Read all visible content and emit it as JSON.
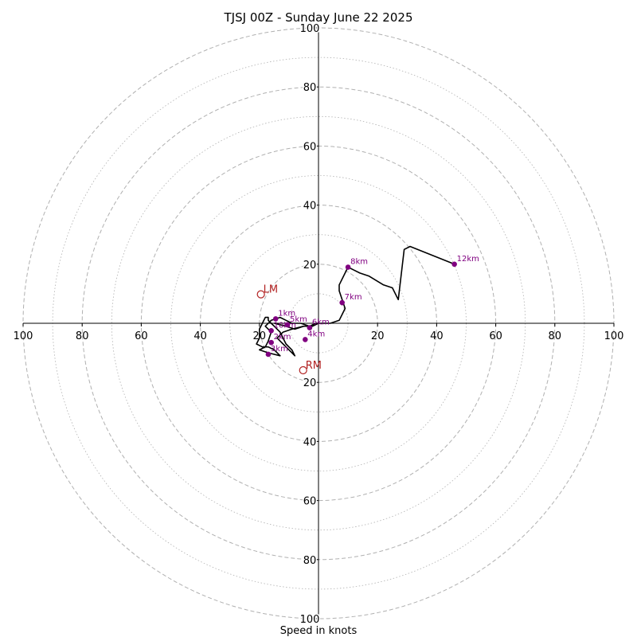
{
  "chart_data": {
    "type": "hodograph",
    "title": "TJSJ 00Z - Sunday June 22 2025",
    "xlabel": "Speed in knots",
    "ylabel": "",
    "xlim": [
      -100,
      100
    ],
    "ylim": [
      -100,
      100
    ],
    "rings_major": [
      20,
      40,
      60,
      80,
      100
    ],
    "rings_minor": [
      10,
      30,
      50,
      70,
      90
    ],
    "x_ticks": [
      {
        "value": -100,
        "label": "100"
      },
      {
        "value": -80,
        "label": "80"
      },
      {
        "value": -60,
        "label": "60"
      },
      {
        "value": -40,
        "label": "40"
      },
      {
        "value": -20,
        "label": "20"
      },
      {
        "value": 20,
        "label": "20"
      },
      {
        "value": 40,
        "label": "40"
      },
      {
        "value": 60,
        "label": "60"
      },
      {
        "value": 80,
        "label": "80"
      },
      {
        "value": 100,
        "label": "100"
      }
    ],
    "y_ticks": [
      {
        "value": 100,
        "label": "100"
      },
      {
        "value": 80,
        "label": "80"
      },
      {
        "value": 60,
        "label": "60"
      },
      {
        "value": 40,
        "label": "40"
      },
      {
        "value": 20,
        "label": "20"
      },
      {
        "value": -20,
        "label": "20"
      },
      {
        "value": -40,
        "label": "40"
      },
      {
        "value": -60,
        "label": "60"
      },
      {
        "value": -80,
        "label": "80"
      },
      {
        "value": -100,
        "label": "100"
      }
    ],
    "trace": {
      "color": "#000000",
      "points": [
        [
          -15,
          0
        ],
        [
          -11,
          -1
        ],
        [
          -8,
          -2
        ],
        [
          -5,
          -1
        ],
        [
          -3,
          -1
        ],
        [
          -1,
          0
        ],
        [
          0,
          0
        ],
        [
          -2,
          -1
        ],
        [
          -5,
          -1
        ],
        [
          -9,
          -2
        ],
        [
          -12,
          -3
        ],
        [
          -13,
          -4
        ],
        [
          -14,
          -5
        ],
        [
          -13,
          -6
        ],
        [
          -12,
          -7
        ],
        [
          -11,
          -8
        ],
        [
          -10,
          -9
        ],
        [
          -9,
          -10
        ],
        [
          -8,
          -11
        ],
        [
          -9,
          -9
        ],
        [
          -11,
          -7
        ],
        [
          -12,
          -5
        ],
        [
          -13,
          -3
        ],
        [
          -14,
          -2
        ],
        [
          -15,
          -1
        ],
        [
          -16,
          0
        ],
        [
          -17,
          1
        ],
        [
          -17,
          2
        ],
        [
          -18,
          2
        ],
        [
          -19,
          0
        ],
        [
          -20,
          -2
        ],
        [
          -20,
          -5
        ],
        [
          -21,
          -7
        ],
        [
          -19,
          -8
        ],
        [
          -17,
          -8
        ],
        [
          -15,
          -9
        ],
        [
          -14,
          -10
        ],
        [
          -13,
          -11
        ],
        [
          -17,
          -10
        ],
        [
          -20,
          -9
        ],
        [
          -18,
          -8
        ],
        [
          -17,
          -6
        ],
        [
          -16,
          -3
        ],
        [
          -18,
          -1
        ],
        [
          -16,
          1
        ],
        [
          -13,
          2
        ],
        [
          -11,
          1
        ],
        [
          -9,
          0
        ],
        [
          -6,
          0
        ],
        [
          -3,
          -1
        ],
        [
          0,
          0
        ],
        [
          4,
          0
        ],
        [
          7,
          1
        ],
        [
          8,
          3
        ],
        [
          9,
          5
        ],
        [
          8,
          8
        ],
        [
          7,
          11
        ],
        [
          7,
          13
        ],
        [
          9,
          17
        ],
        [
          10,
          19
        ],
        [
          12,
          18
        ],
        [
          14,
          17
        ],
        [
          17,
          16
        ],
        [
          22,
          13
        ],
        [
          25,
          12
        ],
        [
          27,
          8
        ],
        [
          29,
          25
        ],
        [
          31,
          26
        ],
        [
          46,
          20
        ]
      ]
    },
    "km_points": [
      {
        "label": "1km",
        "x": -14.5,
        "y": 1.5
      },
      {
        "label": "2km",
        "x": -16,
        "y": -6.5
      },
      {
        "label": "3km",
        "x": -17,
        "y": -10.5
      },
      {
        "label": "4km",
        "x": -4.5,
        "y": -5.5
      },
      {
        "label": "5km",
        "x": -10.5,
        "y": -0.5
      },
      {
        "label": "6km",
        "x": -3,
        "y": -1.5
      },
      {
        "label": "7km",
        "x": 8,
        "y": 7
      },
      {
        "label": "8km",
        "x": 10,
        "y": 19
      },
      {
        "label": "10km",
        "x": -16,
        "y": -2.5
      },
      {
        "label": "12km",
        "x": 46,
        "y": 20
      }
    ],
    "storm_motion": [
      {
        "label": "LM",
        "x": -19.5,
        "y": 9.8,
        "color": "#b22222"
      },
      {
        "label": "RM",
        "x": -5.2,
        "y": -15.9,
        "color": "#b22222"
      }
    ],
    "colors": {
      "km_point": "#800080",
      "ring": "#b0b0b0",
      "trace": "#000000",
      "storm": "#b22222"
    }
  }
}
